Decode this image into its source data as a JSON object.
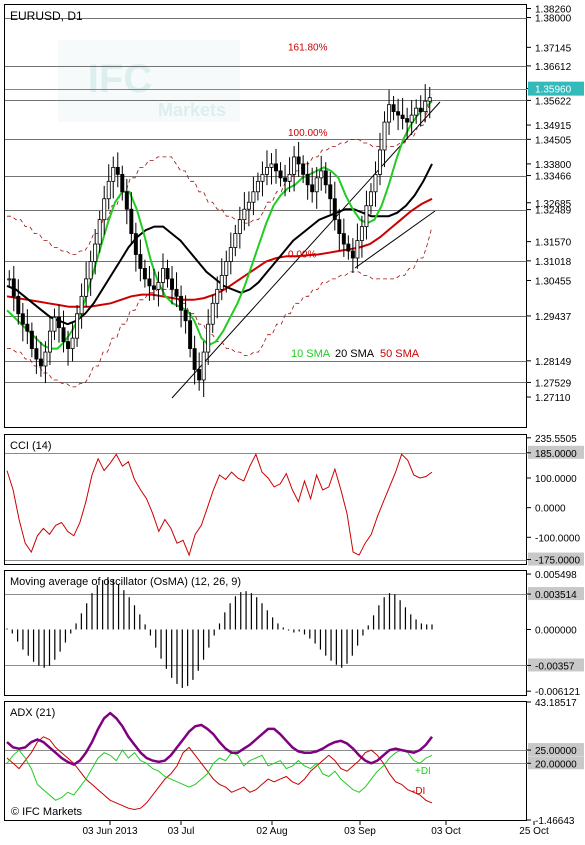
{
  "symbol_title": "EURUSD, D1",
  "watermark": {
    "brand": "IFC",
    "sub": "Markets"
  },
  "copyright": "© IFC Markets",
  "colors": {
    "candle": "#000000",
    "sma10": "#22cc22",
    "sma20": "#000000",
    "sma50": "#cc0000",
    "band": "#a01010",
    "trend": "#000000",
    "hline": "#444444",
    "current": "#33aaaa",
    "cci": "#cc0000",
    "osma": "#000000",
    "adx": "#800080",
    "pdi": "#22cc22",
    "mdi": "#cc0000",
    "price_box": "#33bbbb"
  },
  "x_axis": [
    "03 Jun 2013",
    "03 Jul",
    "02 Aug",
    "03 Sep",
    "03 Oct",
    "25 Oct"
  ],
  "chart_data": [
    {
      "type": "candlestick",
      "title": "EURUSD, D1",
      "ylim": [
        1.2625,
        1.3836
      ],
      "y_ticks": [
        "1.38260",
        "1.38000",
        "1.37145",
        "1.36612",
        "1.35960",
        "1.35622",
        "1.34915",
        "1.34505",
        "1.33800",
        "1.33466",
        "1.32685",
        "1.32489",
        "1.31570",
        "1.31018",
        "1.30455",
        "1.29437",
        "1.28149",
        "1.27529",
        "1.27110"
      ],
      "levels": [
        1.38,
        1.36612,
        1.35622,
        1.34505,
        1.33466,
        1.32489,
        1.31018,
        1.29437,
        1.28149,
        1.27529
      ],
      "current_price": "1.35960",
      "fib_labels": [
        {
          "text": "161.80%",
          "price": 1.3705
        },
        {
          "text": "100.00%",
          "price": 1.346
        },
        {
          "text": "0.00%",
          "price": 1.3112
        }
      ],
      "legend": {
        "sma10": "10 SMA",
        "sma20": "20 SMA",
        "sma50": "50 SMA"
      },
      "closes": [
        1.305,
        1.3,
        1.295,
        1.292,
        1.29,
        1.285,
        1.282,
        1.28,
        1.284,
        1.29,
        1.294,
        1.291,
        1.287,
        1.285,
        1.288,
        1.295,
        1.3,
        1.305,
        1.31,
        1.315,
        1.322,
        1.328,
        1.333,
        1.337,
        1.335,
        1.33,
        1.325,
        1.318,
        1.312,
        1.308,
        1.305,
        1.303,
        1.302,
        1.304,
        1.308,
        1.305,
        1.302,
        1.3,
        1.296,
        1.293,
        1.285,
        1.279,
        1.276,
        1.284,
        1.292,
        1.298,
        1.302,
        1.306,
        1.31,
        1.314,
        1.318,
        1.322,
        1.325,
        1.327,
        1.33,
        1.333,
        1.335,
        1.337,
        1.338,
        1.336,
        1.334,
        1.333,
        1.335,
        1.34,
        1.338,
        1.335,
        1.332,
        1.33,
        1.334,
        1.336,
        1.332,
        1.328,
        1.322,
        1.318,
        1.315,
        1.313,
        1.311,
        1.316,
        1.32,
        1.326,
        1.33,
        1.335,
        1.342,
        1.35,
        1.355,
        1.353,
        1.352,
        1.351,
        1.35,
        1.352,
        1.354,
        1.353,
        1.356,
        1.357
      ],
      "sma10": [
        1.296,
        1.294,
        1.292,
        1.29,
        1.288,
        1.286,
        1.285,
        1.285,
        1.287,
        1.29,
        1.294,
        1.3,
        1.307,
        1.314,
        1.321,
        1.327,
        1.33,
        1.33,
        1.325,
        1.318,
        1.31,
        1.304,
        1.3,
        1.298,
        1.297,
        1.296,
        1.293,
        1.288,
        1.286,
        1.287,
        1.29,
        1.294,
        1.298,
        1.303,
        1.309,
        1.315,
        1.321,
        1.326,
        1.329,
        1.331,
        1.332,
        1.334,
        1.335,
        1.336,
        1.337,
        1.336,
        1.334,
        1.329,
        1.325,
        1.322,
        1.321,
        1.322,
        1.326,
        1.332,
        1.339,
        1.345,
        1.349,
        1.352,
        1.354,
        1.356
      ],
      "sma20": [
        1.303,
        1.302,
        1.3,
        1.298,
        1.296,
        1.294,
        1.293,
        1.292,
        1.293,
        1.295,
        1.298,
        1.302,
        1.306,
        1.31,
        1.314,
        1.317,
        1.319,
        1.32,
        1.32,
        1.318,
        1.316,
        1.313,
        1.31,
        1.307,
        1.305,
        1.303,
        1.302,
        1.301,
        1.302,
        1.304,
        1.307,
        1.31,
        1.313,
        1.316,
        1.318,
        1.32,
        1.322,
        1.323,
        1.324,
        1.325,
        1.325,
        1.324,
        1.323,
        1.323,
        1.323,
        1.324,
        1.326,
        1.329,
        1.333,
        1.338
      ],
      "sma50": [
        1.3,
        1.2995,
        1.299,
        1.2985,
        1.298,
        1.2975,
        1.297,
        1.297,
        1.297,
        1.2975,
        1.298,
        1.299,
        1.3,
        1.3005,
        1.3005,
        1.3,
        1.2995,
        1.299,
        1.299,
        1.2995,
        1.3005,
        1.302,
        1.304,
        1.306,
        1.308,
        1.31,
        1.311,
        1.3115,
        1.3115,
        1.3118,
        1.312,
        1.3125,
        1.313,
        1.3135,
        1.314,
        1.315,
        1.317,
        1.3195,
        1.322,
        1.3245,
        1.3265,
        1.328
      ]
    },
    {
      "type": "line",
      "title": "CCI (14)",
      "ylim": [
        -190,
        245
      ],
      "y_ticks": [
        "235.5505",
        "185.0000",
        "100.0000",
        "0.0000",
        "-100.0000",
        "-175.0000"
      ],
      "levels": [
        185,
        -175
      ],
      "values": [
        125,
        60,
        -40,
        -120,
        -150,
        -95,
        -70,
        -90,
        -60,
        -50,
        -80,
        -95,
        -50,
        20,
        110,
        165,
        125,
        150,
        180,
        140,
        155,
        95,
        60,
        30,
        -20,
        -80,
        -40,
        -70,
        -120,
        -110,
        -160,
        -90,
        -60,
        0,
        60,
        110,
        95,
        120,
        100,
        90,
        140,
        180,
        120,
        100,
        70,
        80,
        115,
        60,
        20,
        90,
        30,
        110,
        60,
        70,
        130,
        60,
        -20,
        -150,
        -160,
        -120,
        -90,
        -30,
        20,
        70,
        120,
        180,
        160,
        110,
        100,
        105,
        120
      ]
    },
    {
      "type": "bar",
      "title": "Moving average of oscillator (OsMA) (12, 26, 9)",
      "ylim": [
        -0.0065,
        0.0058
      ],
      "y_ticks": [
        "0.005498",
        "0.003514",
        "0.000000",
        "-0.00357",
        "-0.006121"
      ],
      "levels": [
        0.003514,
        -0.00357
      ],
      "values": [
        0.0001,
        -0.0004,
        -0.0012,
        -0.002,
        -0.0026,
        -0.0032,
        -0.0036,
        -0.0038,
        -0.0036,
        -0.003,
        -0.0022,
        -0.0013,
        -0.0004,
        0.0006,
        0.0016,
        0.0026,
        0.0036,
        0.0044,
        0.0049,
        0.0052,
        0.005,
        0.0045,
        0.0039,
        0.0032,
        0.0024,
        0.0015,
        0.0005,
        -0.0006,
        -0.0018,
        -0.0029,
        -0.0039,
        -0.0048,
        -0.0054,
        -0.0058,
        -0.0056,
        -0.005,
        -0.0041,
        -0.003,
        -0.0018,
        -0.0006,
        0.0006,
        0.0017,
        0.0026,
        0.0033,
        0.0037,
        0.0038,
        0.0036,
        0.0032,
        0.0026,
        0.0019,
        0.0012,
        0.0006,
        0.0002,
        -0.0001,
        -0.0003,
        -0.0002,
        -0.0005,
        -0.0009,
        -0.0014,
        -0.002,
        -0.0026,
        -0.0031,
        -0.0035,
        -0.0038,
        -0.0034,
        -0.0026,
        -0.0016,
        -0.0006,
        0.0004,
        0.0014,
        0.0024,
        0.0032,
        0.0036,
        0.0035,
        0.0029,
        0.0022,
        0.0015,
        0.001,
        0.0006,
        0.0005,
        0.0005
      ]
    },
    {
      "type": "line",
      "title": "ADX (21)",
      "ylim": [
        -1.46643,
        43.18517
      ],
      "y_ticks": [
        "43.18517",
        "25.00000",
        "20.00000",
        "-1.46643"
      ],
      "levels": [
        25,
        20
      ],
      "series": [
        {
          "name": "",
          "values": [
            28,
            26,
            25.5,
            26,
            28,
            29,
            28,
            26,
            24,
            22,
            20.5,
            19.5,
            21,
            24,
            28,
            33,
            37,
            39,
            37,
            34,
            30,
            27,
            24,
            22,
            21,
            20.5,
            21,
            23,
            26,
            29,
            32,
            34,
            34.5,
            33,
            31,
            28,
            25.5,
            24,
            24,
            25.5,
            27,
            29,
            31,
            33,
            33,
            31,
            28.5,
            26,
            24.5,
            24,
            24,
            24.5,
            25.5,
            27,
            28,
            28.5,
            27.5,
            25.5,
            23,
            21,
            20,
            21,
            23,
            25,
            25.5,
            25,
            24.5,
            24,
            25,
            27,
            30
          ]
        },
        {
          "name": "+DI",
          "values": [
            20,
            23,
            25,
            22,
            18,
            12,
            10,
            8,
            6,
            7,
            9,
            8,
            11,
            14,
            18,
            22,
            24,
            23,
            21,
            25,
            22,
            24,
            21,
            20,
            18,
            17,
            15,
            14,
            13,
            12,
            11,
            12,
            14,
            16,
            20,
            22,
            21,
            24,
            23,
            19,
            21,
            22,
            23,
            19,
            20,
            21,
            18,
            19,
            21,
            19,
            18,
            20,
            16,
            15,
            17,
            14,
            12,
            10,
            9,
            11,
            14,
            17,
            19,
            22,
            24,
            25,
            24,
            21,
            20,
            22,
            23
          ]
        },
        {
          "name": "-DI",
          "values": [
            22,
            20,
            18,
            21,
            24,
            28,
            30,
            29,
            26,
            24,
            22,
            20,
            17,
            14,
            12,
            10,
            8,
            6,
            5,
            4,
            3,
            2.5,
            3,
            5,
            8,
            11,
            14,
            16,
            19,
            24,
            26,
            23,
            20,
            17,
            14,
            12,
            11,
            9,
            10,
            11,
            9,
            10,
            12,
            14,
            13,
            14,
            15,
            13,
            12,
            14,
            17,
            19,
            21,
            23,
            21,
            18,
            17,
            19,
            21,
            24,
            25,
            23,
            20,
            16,
            13,
            12,
            10,
            9,
            8,
            6,
            5
          ]
        }
      ]
    }
  ]
}
